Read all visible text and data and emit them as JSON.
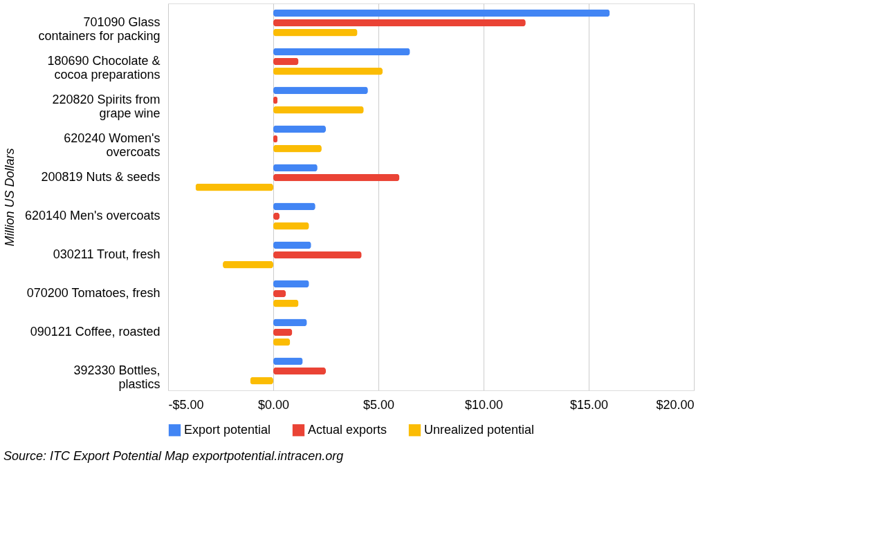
{
  "chart_data": {
    "type": "bar",
    "orientation": "horizontal",
    "ylabel": "Million US Dollars",
    "categories": [
      "701090 Glass containers for packing",
      "180690 Chocolate & cocoa preparations",
      "220820 Spirits from grape wine",
      "620240 Women's overcoats",
      "200819 Nuts & seeds",
      "620140 Men's overcoats",
      "030211 Trout, fresh",
      "070200 Tomatoes, fresh",
      "090121 Coffee, roasted",
      "392330 Bottles, plastics"
    ],
    "series": [
      {
        "name": "Export potential",
        "color": "#4285f4",
        "values": [
          16.0,
          6.5,
          4.5,
          2.5,
          2.1,
          2.0,
          1.8,
          1.7,
          1.6,
          1.4
        ]
      },
      {
        "name": "Actual exports",
        "color": "#ea4335",
        "values": [
          12.0,
          1.2,
          0.2,
          0.2,
          6.0,
          0.3,
          4.2,
          0.6,
          0.9,
          2.5
        ]
      },
      {
        "name": "Unrealized potential",
        "color": "#fbbc04",
        "values": [
          4.0,
          5.2,
          4.3,
          2.3,
          -3.7,
          1.7,
          -2.4,
          1.2,
          0.8,
          -1.1
        ]
      }
    ],
    "xlim": [
      -5,
      20
    ],
    "xticks": [
      {
        "value": -5,
        "label": "-$5.00"
      },
      {
        "value": 0,
        "label": "$0.00"
      },
      {
        "value": 5,
        "label": "$5.00"
      },
      {
        "value": 10,
        "label": "$10.00"
      },
      {
        "value": 15,
        "label": "$15.00"
      },
      {
        "value": 20,
        "label": "$20.00"
      }
    ],
    "grid": "x",
    "legend": "bottom",
    "annotations": [
      "Source: ITC Export Potential Map exportpotential.intracen.org"
    ]
  }
}
